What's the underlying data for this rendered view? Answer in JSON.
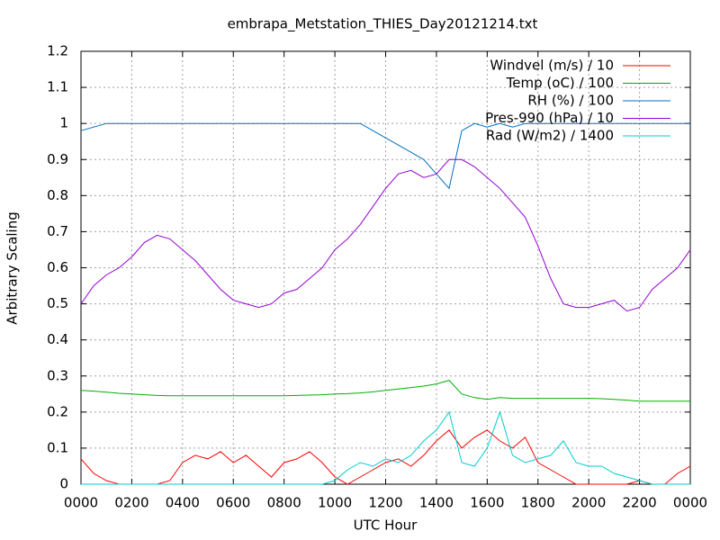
{
  "chart_data": {
    "type": "line",
    "title": "embrapa_Metstation_THIES_Day20121214.txt",
    "xlabel": "UTC Hour",
    "ylabel": "Arbitrary Scaling",
    "xlim": [
      0,
      24
    ],
    "ylim": [
      0,
      1.2
    ],
    "grid": true,
    "legend": "top-right",
    "xticks": [
      {
        "value": 0,
        "label": "0000"
      },
      {
        "value": 2,
        "label": "0200"
      },
      {
        "value": 4,
        "label": "0400"
      },
      {
        "value": 6,
        "label": "0600"
      },
      {
        "value": 8,
        "label": "0800"
      },
      {
        "value": 10,
        "label": "1000"
      },
      {
        "value": 12,
        "label": "1200"
      },
      {
        "value": 14,
        "label": "1400"
      },
      {
        "value": 16,
        "label": "1600"
      },
      {
        "value": 18,
        "label": "1800"
      },
      {
        "value": 20,
        "label": "2000"
      },
      {
        "value": 22,
        "label": "2200"
      },
      {
        "value": 24,
        "label": "0000"
      }
    ],
    "yticks": [
      0,
      0.1,
      0.2,
      0.3,
      0.4,
      0.5,
      0.6,
      0.7,
      0.8,
      0.9,
      1,
      1.1,
      1.2
    ],
    "x": [
      0,
      0.5,
      1,
      1.5,
      2,
      2.5,
      3,
      3.5,
      4,
      4.5,
      5,
      5.5,
      6,
      6.5,
      7,
      7.5,
      8,
      8.5,
      9,
      9.5,
      10,
      10.5,
      11,
      11.5,
      12,
      12.5,
      13,
      13.5,
      14,
      14.5,
      15,
      15.5,
      16,
      16.5,
      17,
      17.5,
      18,
      18.5,
      19,
      19.5,
      20,
      20.5,
      21,
      21.5,
      22,
      22.5,
      23,
      23.5,
      24
    ],
    "series": [
      {
        "name": "Windvel (m/s) / 10",
        "color": "#ff0000",
        "values": [
          0.07,
          0.03,
          0.01,
          0,
          0,
          0,
          0,
          0.01,
          0.06,
          0.08,
          0.07,
          0.09,
          0.06,
          0.08,
          0.05,
          0.02,
          0.06,
          0.07,
          0.09,
          0.06,
          0.02,
          0,
          0.02,
          0.04,
          0.06,
          0.07,
          0.05,
          0.08,
          0.12,
          0.15,
          0.1,
          0.13,
          0.15,
          0.12,
          0.1,
          0.13,
          0.06,
          0.04,
          0.02,
          0,
          0,
          0,
          0,
          0,
          0.01,
          0,
          0,
          0.03,
          0.05
        ]
      },
      {
        "name": "Temp (oC) / 100",
        "color": "#00b000",
        "values": [
          0.26,
          0.258,
          0.255,
          0.252,
          0.25,
          0.248,
          0.246,
          0.245,
          0.245,
          0.245,
          0.245,
          0.245,
          0.245,
          0.245,
          0.245,
          0.245,
          0.245,
          0.246,
          0.247,
          0.248,
          0.25,
          0.251,
          0.253,
          0.256,
          0.26,
          0.264,
          0.268,
          0.272,
          0.278,
          0.288,
          0.25,
          0.24,
          0.235,
          0.24,
          0.238,
          0.238,
          0.238,
          0.238,
          0.238,
          0.238,
          0.238,
          0.237,
          0.235,
          0.233,
          0.23,
          0.23,
          0.23,
          0.23,
          0.23
        ]
      },
      {
        "name": "RH (%) / 100",
        "color": "#0070c0",
        "values": [
          0.98,
          0.99,
          1,
          1,
          1,
          1,
          1,
          1,
          1,
          1,
          1,
          1,
          1,
          1,
          1,
          1,
          1,
          1,
          1,
          1,
          1,
          1,
          1,
          0.98,
          0.96,
          0.94,
          0.92,
          0.9,
          0.86,
          0.82,
          0.98,
          1,
          0.99,
          1,
          0.99,
          1,
          1,
          1,
          1,
          1,
          1,
          1,
          1,
          1,
          1,
          1,
          1,
          1,
          1
        ]
      },
      {
        "name": "Pres-990 (hPa) / 10",
        "color": "#9400d3",
        "values": [
          0.5,
          0.55,
          0.58,
          0.6,
          0.63,
          0.67,
          0.69,
          0.68,
          0.65,
          0.62,
          0.58,
          0.54,
          0.51,
          0.5,
          0.49,
          0.5,
          0.53,
          0.54,
          0.57,
          0.6,
          0.65,
          0.68,
          0.72,
          0.77,
          0.82,
          0.86,
          0.87,
          0.85,
          0.86,
          0.9,
          0.9,
          0.88,
          0.85,
          0.82,
          0.78,
          0.74,
          0.66,
          0.57,
          0.5,
          0.49,
          0.49,
          0.5,
          0.51,
          0.48,
          0.49,
          0.54,
          0.57,
          0.6,
          0.65
        ]
      },
      {
        "name": "Rad (W/m2) / 1400",
        "color": "#00cccc",
        "values": [
          0,
          0,
          0,
          0,
          0,
          0,
          0,
          0,
          0,
          0,
          0,
          0,
          0,
          0,
          0,
          0,
          0,
          0,
          0,
          0,
          0.01,
          0.04,
          0.06,
          0.05,
          0.07,
          0.06,
          0.08,
          0.12,
          0.15,
          0.2,
          0.06,
          0.05,
          0.1,
          0.2,
          0.08,
          0.06,
          0.07,
          0.08,
          0.12,
          0.06,
          0.05,
          0.05,
          0.03,
          0.02,
          0.01,
          0,
          0,
          0,
          0
        ]
      }
    ]
  }
}
